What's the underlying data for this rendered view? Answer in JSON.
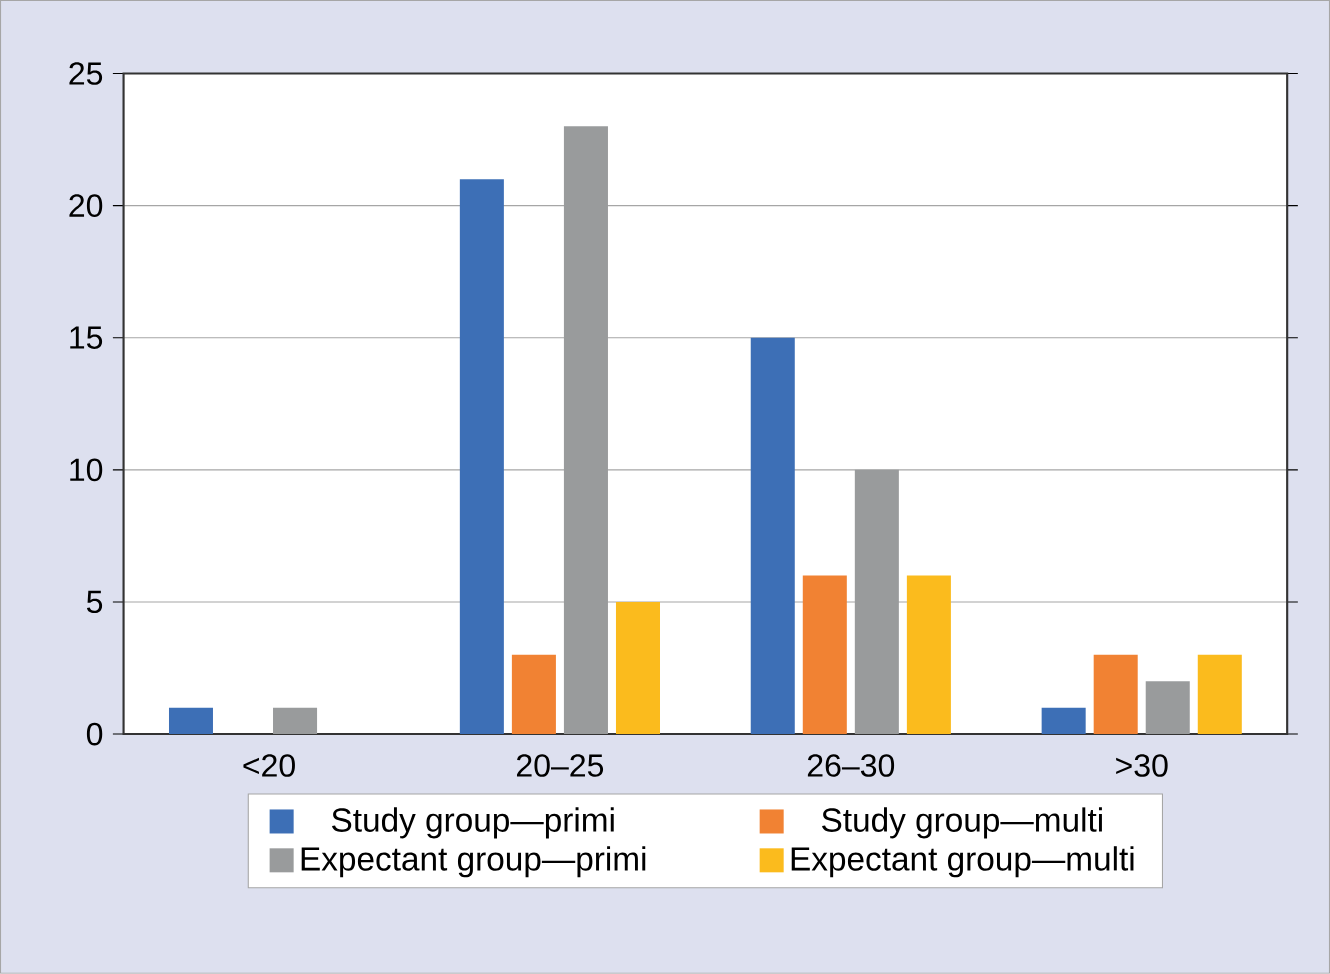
{
  "chart_data": {
    "type": "bar",
    "categories": [
      "<20",
      "20–25",
      "26–30",
      ">30"
    ],
    "series": [
      {
        "name": "Study group—primi",
        "color": "#3d6fb6",
        "values": [
          1,
          21,
          15,
          1
        ]
      },
      {
        "name": "Study group—multi",
        "color": "#f18233",
        "values": [
          0,
          3,
          6,
          3
        ]
      },
      {
        "name": "Expectant group—primi",
        "color": "#999b9c",
        "values": [
          1,
          23,
          10,
          2
        ]
      },
      {
        "name": "Expectant group—multi",
        "color": "#fbbb1d",
        "values": [
          0,
          5,
          6,
          3
        ]
      }
    ],
    "ylim": [
      0,
      25
    ],
    "yticks": [
      0,
      5,
      10,
      15,
      20,
      25
    ],
    "grid": "y",
    "legend": "bottom"
  }
}
